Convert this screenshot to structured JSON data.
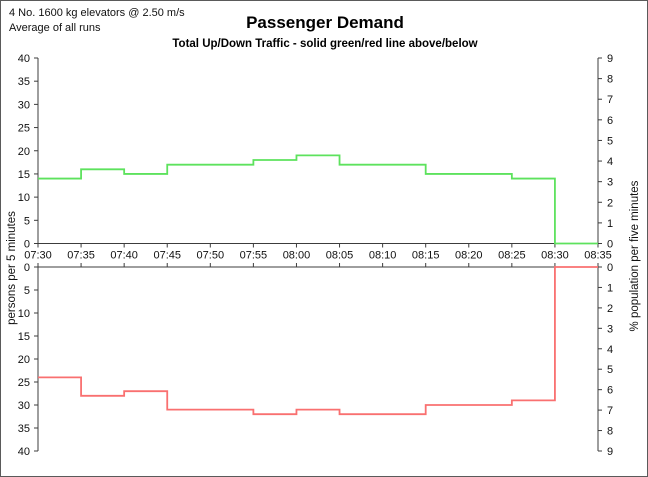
{
  "header": {
    "info_line1": "4 No. 1600 kg elevators @ 2.50 m/s",
    "info_line2": "Average of all runs",
    "title": "Passenger Demand",
    "subtitle": "Total Up/Down Traffic - solid green/red line above/below"
  },
  "colors": {
    "up_line": "#5de25d",
    "down_line": "#f97070",
    "axis": "#3c3c3c",
    "text": "#111111"
  },
  "chart_data": {
    "type": "line",
    "subtype": "step",
    "title": "Passenger Demand",
    "subtitle": "Total Up/Down Traffic - solid green/red line above/below",
    "x_tick_labels": [
      "07:30",
      "07:35",
      "07:40",
      "07:45",
      "07:50",
      "07:55",
      "08:00",
      "08:05",
      "08:10",
      "08:15",
      "08:20",
      "08:25",
      "08:30",
      "08:35"
    ],
    "interval_starts": [
      "07:30",
      "07:35",
      "07:40",
      "07:45",
      "07:50",
      "07:55",
      "08:00",
      "08:05",
      "08:10",
      "08:15",
      "08:20",
      "08:25",
      "08:30"
    ],
    "interval_minutes": 5,
    "series": [
      {
        "name": "up-traffic",
        "panel": "top",
        "color": "#5de25d",
        "values": [
          14,
          16,
          15,
          17,
          17,
          18,
          19,
          17,
          17,
          15,
          15,
          14,
          0
        ]
      },
      {
        "name": "down-traffic",
        "panel": "bottom",
        "color": "#f97070",
        "values": [
          24,
          28,
          27,
          31,
          31,
          32,
          31,
          32,
          32,
          30,
          30,
          29,
          0
        ]
      }
    ],
    "left_axis": {
      "label": "persons per 5 minutes",
      "ticks": [
        0,
        5,
        10,
        15,
        20,
        25,
        30,
        35,
        40
      ],
      "max": 40
    },
    "right_axis": {
      "label": "% population per five minutes",
      "ticks": [
        0,
        1,
        2,
        3,
        4,
        5,
        6,
        7,
        8,
        9
      ],
      "max": 9
    },
    "top_panel": {
      "ylim": [
        0,
        40
      ],
      "inverted": false
    },
    "bottom_panel": {
      "ylim": [
        0,
        40
      ],
      "inverted": true
    },
    "grid": false,
    "legend": "none (described in subtitle)"
  }
}
